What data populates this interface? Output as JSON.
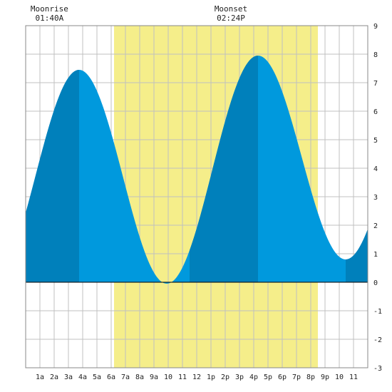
{
  "chart_data": {
    "type": "area",
    "title": "",
    "xlabel": "",
    "ylabel": "",
    "x_unit": "hour of day",
    "xlim": [
      0,
      24
    ],
    "ylim": [
      -3,
      9
    ],
    "grid": true,
    "x_ticks": [
      {
        "hour": 1,
        "label": "1a"
      },
      {
        "hour": 2,
        "label": "2a"
      },
      {
        "hour": 3,
        "label": "3a"
      },
      {
        "hour": 4,
        "label": "4a"
      },
      {
        "hour": 5,
        "label": "5a"
      },
      {
        "hour": 6,
        "label": "6a"
      },
      {
        "hour": 7,
        "label": "7a"
      },
      {
        "hour": 8,
        "label": "8a"
      },
      {
        "hour": 9,
        "label": "9a"
      },
      {
        "hour": 10,
        "label": "10"
      },
      {
        "hour": 11,
        "label": "11"
      },
      {
        "hour": 12,
        "label": "12"
      },
      {
        "hour": 13,
        "label": "1p"
      },
      {
        "hour": 14,
        "label": "2p"
      },
      {
        "hour": 15,
        "label": "3p"
      },
      {
        "hour": 16,
        "label": "4p"
      },
      {
        "hour": 17,
        "label": "5p"
      },
      {
        "hour": 18,
        "label": "6p"
      },
      {
        "hour": 19,
        "label": "7p"
      },
      {
        "hour": 20,
        "label": "8p"
      },
      {
        "hour": 21,
        "label": "9p"
      },
      {
        "hour": 22,
        "label": "10"
      },
      {
        "hour": 23,
        "label": "11"
      }
    ],
    "y_ticks": [
      -3,
      -2,
      -1,
      0,
      1,
      2,
      3,
      4,
      5,
      6,
      7,
      8,
      9
    ],
    "daylight": {
      "start": 6.2,
      "end": 20.5
    },
    "tide_extrema": [
      {
        "x": 3.75,
        "y": 7.45,
        "kind": "high"
      },
      {
        "x": 9.9,
        "y": -0.05,
        "kind": "low"
      },
      {
        "x": 16.3,
        "y": 7.95,
        "kind": "high"
      },
      {
        "x": 22.45,
        "y": 0.8,
        "kind": "low"
      }
    ],
    "night_shade_ranges": [
      [
        0,
        3.75
      ],
      [
        11.5,
        16.3
      ],
      [
        22.45,
        24
      ]
    ],
    "tide_start": {
      "x": 0,
      "y": 3.5
    },
    "tide_end": {
      "x": 24,
      "y": 1.75
    },
    "annotations": [
      {
        "label": "Moonrise",
        "time": "01:40A",
        "hour": 1.67
      },
      {
        "label": "Moonset",
        "time": "02:24P",
        "hour": 14.4
      }
    ],
    "colors": {
      "tide": "#0099dd",
      "tide_dark": "#0080bb",
      "daylight": "#f5ee8a",
      "grid": "#c0c0c0",
      "zero_line": "#000000"
    }
  }
}
